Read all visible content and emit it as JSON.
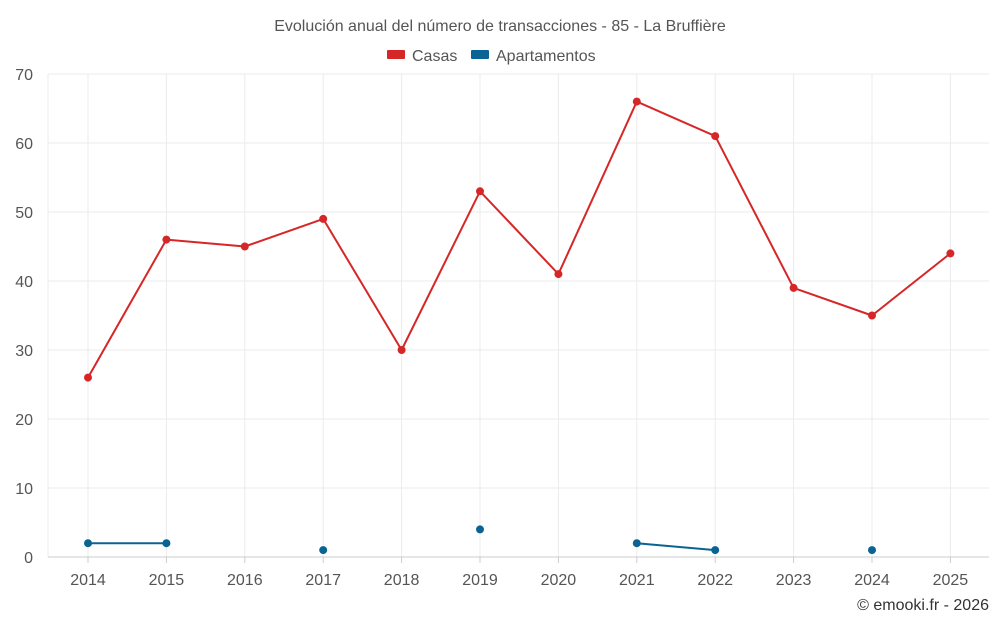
{
  "chart_data": {
    "type": "line",
    "title": "Evolución anual del número de transacciones - 85 - La Bruffière",
    "x": [
      "2014",
      "2015",
      "2016",
      "2017",
      "2018",
      "2019",
      "2020",
      "2021",
      "2022",
      "2023",
      "2024",
      "2025"
    ],
    "ylim": [
      0,
      70
    ],
    "yticks": [
      0,
      10,
      20,
      30,
      40,
      50,
      60,
      70
    ],
    "grid": true,
    "legend_position": "top-center",
    "series": [
      {
        "name": "Casas",
        "color": "#d62728",
        "values": [
          26,
          46,
          45,
          49,
          30,
          53,
          41,
          66,
          61,
          39,
          35,
          44
        ]
      },
      {
        "name": "Apartamentos",
        "color": "#0b6394",
        "values": [
          2,
          2,
          null,
          1,
          null,
          4,
          null,
          2,
          1,
          null,
          1,
          null
        ]
      }
    ]
  },
  "credit": "© emooki.fr - 2026"
}
